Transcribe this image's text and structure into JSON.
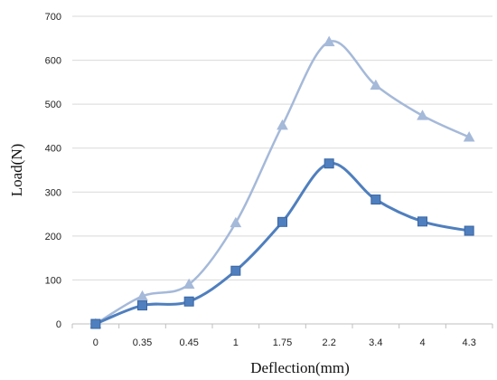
{
  "chart_data": {
    "type": "line",
    "title": "",
    "xlabel": "Deflection(mm)",
    "ylabel": "Load(N)",
    "categories": [
      "0",
      "0.35",
      "0.45",
      "1",
      "1.75",
      "2.2",
      "3.4",
      "4",
      "4.3"
    ],
    "ylim": [
      0,
      700
    ],
    "yticks": [
      "0",
      "100",
      "200",
      "300",
      "400",
      "500",
      "600",
      "700"
    ],
    "grid": true,
    "smoothed": true,
    "series": [
      {
        "marker": "triangle",
        "color": "#a5b9d9",
        "values": [
          0,
          63,
          90,
          230,
          452,
          642,
          543,
          474,
          425
        ]
      },
      {
        "marker": "square",
        "color": "#4f7fbe",
        "values": [
          0,
          42,
          51,
          121,
          232,
          365,
          283,
          233,
          212
        ]
      }
    ]
  }
}
